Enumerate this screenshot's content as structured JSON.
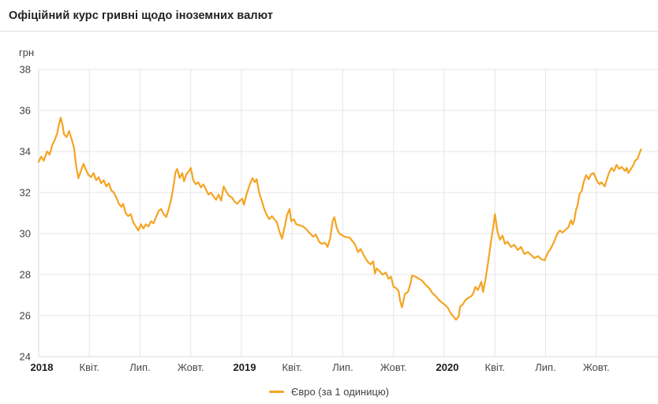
{
  "header": {
    "title": "Офіційний курс гривні щодо іноземних валют"
  },
  "legend": {
    "label": "Євро (за 1 одиницю)"
  },
  "colors": {
    "series": "#F5A423",
    "grid": "#e6e6e6",
    "axis": "#d9d9d9",
    "tick_text": "#424242",
    "month_label": "#46494d",
    "year_label": "#1d1d1d",
    "separator": "#e0e0e0"
  },
  "chart_data": {
    "type": "line",
    "title": "Офіційний курс гривні щодо іноземних валют",
    "xlabel": "",
    "ylabel": "грн",
    "ylim": [
      24,
      38
    ],
    "yticks": [
      24,
      26,
      28,
      30,
      32,
      34,
      36,
      38
    ],
    "grid": true,
    "legend_position": "bottom",
    "x_unit": "months_since_2018-01",
    "xlim_months": [
      0,
      36.65
    ],
    "x_ticks": [
      {
        "month": 0,
        "label": "2018",
        "year": true
      },
      {
        "month": 3,
        "label": "Квіт.",
        "year": false
      },
      {
        "month": 6,
        "label": "Лип.",
        "year": false
      },
      {
        "month": 9,
        "label": "Жовт.",
        "year": false
      },
      {
        "month": 12,
        "label": "2019",
        "year": true
      },
      {
        "month": 15,
        "label": "Квіт.",
        "year": false
      },
      {
        "month": 18,
        "label": "Лип.",
        "year": false
      },
      {
        "month": 21,
        "label": "Жовт.",
        "year": false
      },
      {
        "month": 24,
        "label": "2020",
        "year": true
      },
      {
        "month": 27,
        "label": "Квіт.",
        "year": false
      },
      {
        "month": 30,
        "label": "Лип.",
        "year": false
      },
      {
        "month": 33,
        "label": "Жовт.",
        "year": false
      }
    ],
    "series": [
      {
        "name": "Євро (за 1 одиницю)",
        "color": "#F5A423",
        "points": [
          [
            0.0,
            33.5
          ],
          [
            0.15,
            33.75
          ],
          [
            0.3,
            33.55
          ],
          [
            0.5,
            34.0
          ],
          [
            0.65,
            33.85
          ],
          [
            0.8,
            34.3
          ],
          [
            0.95,
            34.55
          ],
          [
            1.1,
            34.9
          ],
          [
            1.2,
            35.3
          ],
          [
            1.3,
            35.65
          ],
          [
            1.4,
            35.35
          ],
          [
            1.5,
            34.85
          ],
          [
            1.65,
            34.7
          ],
          [
            1.8,
            35.0
          ],
          [
            1.95,
            34.6
          ],
          [
            2.1,
            34.15
          ],
          [
            2.2,
            33.4
          ],
          [
            2.35,
            32.7
          ],
          [
            2.5,
            33.05
          ],
          [
            2.65,
            33.4
          ],
          [
            2.8,
            33.1
          ],
          [
            2.95,
            32.85
          ],
          [
            3.1,
            32.75
          ],
          [
            3.25,
            32.95
          ],
          [
            3.4,
            32.6
          ],
          [
            3.55,
            32.75
          ],
          [
            3.7,
            32.45
          ],
          [
            3.85,
            32.6
          ],
          [
            4.0,
            32.3
          ],
          [
            4.15,
            32.45
          ],
          [
            4.3,
            32.1
          ],
          [
            4.45,
            32.0
          ],
          [
            4.6,
            31.75
          ],
          [
            4.75,
            31.45
          ],
          [
            4.9,
            31.3
          ],
          [
            5.0,
            31.45
          ],
          [
            5.15,
            31.0
          ],
          [
            5.3,
            30.85
          ],
          [
            5.45,
            30.95
          ],
          [
            5.6,
            30.55
          ],
          [
            5.75,
            30.35
          ],
          [
            5.9,
            30.15
          ],
          [
            6.05,
            30.45
          ],
          [
            6.2,
            30.25
          ],
          [
            6.35,
            30.45
          ],
          [
            6.5,
            30.35
          ],
          [
            6.65,
            30.6
          ],
          [
            6.8,
            30.5
          ],
          [
            6.95,
            30.8
          ],
          [
            7.1,
            31.1
          ],
          [
            7.25,
            31.2
          ],
          [
            7.4,
            30.95
          ],
          [
            7.55,
            30.8
          ],
          [
            7.7,
            31.2
          ],
          [
            7.85,
            31.7
          ],
          [
            8.0,
            32.4
          ],
          [
            8.1,
            33.0
          ],
          [
            8.2,
            33.15
          ],
          [
            8.35,
            32.7
          ],
          [
            8.5,
            32.95
          ],
          [
            8.6,
            32.55
          ],
          [
            8.75,
            32.9
          ],
          [
            8.9,
            33.05
          ],
          [
            9.0,
            33.2
          ],
          [
            9.15,
            32.6
          ],
          [
            9.3,
            32.4
          ],
          [
            9.45,
            32.5
          ],
          [
            9.6,
            32.25
          ],
          [
            9.75,
            32.4
          ],
          [
            9.9,
            32.15
          ],
          [
            10.05,
            31.9
          ],
          [
            10.2,
            32.0
          ],
          [
            10.35,
            31.8
          ],
          [
            10.5,
            31.65
          ],
          [
            10.65,
            31.9
          ],
          [
            10.8,
            31.6
          ],
          [
            10.95,
            32.3
          ],
          [
            11.1,
            32.05
          ],
          [
            11.25,
            31.85
          ],
          [
            11.45,
            31.75
          ],
          [
            11.6,
            31.55
          ],
          [
            11.75,
            31.45
          ],
          [
            11.9,
            31.6
          ],
          [
            12.05,
            31.7
          ],
          [
            12.15,
            31.4
          ],
          [
            12.3,
            31.9
          ],
          [
            12.5,
            32.4
          ],
          [
            12.65,
            32.7
          ],
          [
            12.8,
            32.5
          ],
          [
            12.9,
            32.65
          ],
          [
            13.05,
            32.0
          ],
          [
            13.2,
            31.6
          ],
          [
            13.35,
            31.2
          ],
          [
            13.5,
            30.9
          ],
          [
            13.65,
            30.7
          ],
          [
            13.8,
            30.85
          ],
          [
            13.95,
            30.7
          ],
          [
            14.1,
            30.55
          ],
          [
            14.25,
            30.1
          ],
          [
            14.4,
            29.75
          ],
          [
            14.55,
            30.3
          ],
          [
            14.7,
            30.9
          ],
          [
            14.85,
            31.2
          ],
          [
            14.95,
            30.6
          ],
          [
            15.1,
            30.7
          ],
          [
            15.25,
            30.45
          ],
          [
            15.45,
            30.4
          ],
          [
            15.65,
            30.35
          ],
          [
            15.85,
            30.2
          ],
          [
            16.0,
            30.05
          ],
          [
            16.25,
            29.85
          ],
          [
            16.4,
            29.95
          ],
          [
            16.6,
            29.6
          ],
          [
            16.75,
            29.5
          ],
          [
            16.95,
            29.55
          ],
          [
            17.1,
            29.35
          ],
          [
            17.25,
            29.75
          ],
          [
            17.4,
            30.6
          ],
          [
            17.5,
            30.8
          ],
          [
            17.65,
            30.25
          ],
          [
            17.8,
            30.0
          ],
          [
            18.1,
            29.85
          ],
          [
            18.4,
            29.8
          ],
          [
            18.7,
            29.5
          ],
          [
            18.9,
            29.1
          ],
          [
            19.05,
            29.25
          ],
          [
            19.3,
            28.85
          ],
          [
            19.5,
            28.6
          ],
          [
            19.65,
            28.5
          ],
          [
            19.8,
            28.65
          ],
          [
            19.9,
            28.05
          ],
          [
            20.0,
            28.3
          ],
          [
            20.2,
            28.15
          ],
          [
            20.35,
            28.0
          ],
          [
            20.55,
            28.1
          ],
          [
            20.7,
            27.8
          ],
          [
            20.85,
            27.9
          ],
          [
            21.0,
            27.4
          ],
          [
            21.15,
            27.35
          ],
          [
            21.3,
            27.2
          ],
          [
            21.4,
            26.7
          ],
          [
            21.5,
            26.4
          ],
          [
            21.67,
            27.05
          ],
          [
            21.85,
            27.15
          ],
          [
            22.0,
            27.55
          ],
          [
            22.1,
            27.95
          ],
          [
            22.3,
            27.9
          ],
          [
            22.5,
            27.8
          ],
          [
            22.7,
            27.7
          ],
          [
            22.9,
            27.5
          ],
          [
            23.1,
            27.35
          ],
          [
            23.3,
            27.1
          ],
          [
            23.5,
            26.95
          ],
          [
            23.7,
            26.75
          ],
          [
            23.85,
            26.65
          ],
          [
            24.0,
            26.55
          ],
          [
            24.2,
            26.4
          ],
          [
            24.4,
            26.1
          ],
          [
            24.55,
            25.95
          ],
          [
            24.7,
            25.8
          ],
          [
            24.85,
            25.95
          ],
          [
            24.95,
            26.45
          ],
          [
            25.1,
            26.55
          ],
          [
            25.25,
            26.75
          ],
          [
            25.4,
            26.85
          ],
          [
            25.6,
            26.95
          ],
          [
            25.7,
            27.05
          ],
          [
            25.85,
            27.4
          ],
          [
            26.0,
            27.25
          ],
          [
            26.2,
            27.65
          ],
          [
            26.3,
            27.15
          ],
          [
            26.45,
            27.8
          ],
          [
            26.6,
            28.6
          ],
          [
            26.75,
            29.5
          ],
          [
            26.9,
            30.3
          ],
          [
            27.0,
            30.95
          ],
          [
            27.15,
            30.1
          ],
          [
            27.3,
            29.7
          ],
          [
            27.45,
            29.9
          ],
          [
            27.6,
            29.5
          ],
          [
            27.75,
            29.6
          ],
          [
            27.95,
            29.35
          ],
          [
            28.15,
            29.45
          ],
          [
            28.35,
            29.2
          ],
          [
            28.55,
            29.35
          ],
          [
            28.75,
            29.0
          ],
          [
            28.95,
            29.1
          ],
          [
            29.15,
            28.95
          ],
          [
            29.35,
            28.8
          ],
          [
            29.55,
            28.9
          ],
          [
            29.75,
            28.75
          ],
          [
            29.95,
            28.7
          ],
          [
            30.15,
            29.1
          ],
          [
            30.3,
            29.25
          ],
          [
            30.5,
            29.6
          ],
          [
            30.7,
            30.0
          ],
          [
            30.85,
            30.15
          ],
          [
            31.0,
            30.05
          ],
          [
            31.2,
            30.2
          ],
          [
            31.35,
            30.3
          ],
          [
            31.5,
            30.65
          ],
          [
            31.6,
            30.45
          ],
          [
            31.7,
            30.65
          ],
          [
            31.8,
            31.15
          ],
          [
            31.9,
            31.4
          ],
          [
            32.0,
            31.9
          ],
          [
            32.15,
            32.1
          ],
          [
            32.25,
            32.5
          ],
          [
            32.4,
            32.85
          ],
          [
            32.55,
            32.65
          ],
          [
            32.7,
            32.9
          ],
          [
            32.85,
            32.95
          ],
          [
            33.05,
            32.55
          ],
          [
            33.2,
            32.4
          ],
          [
            33.3,
            32.5
          ],
          [
            33.5,
            32.3
          ],
          [
            33.65,
            32.7
          ],
          [
            33.75,
            32.95
          ],
          [
            33.9,
            33.2
          ],
          [
            34.05,
            33.05
          ],
          [
            34.2,
            33.35
          ],
          [
            34.35,
            33.15
          ],
          [
            34.5,
            33.25
          ],
          [
            34.7,
            33.05
          ],
          [
            34.8,
            33.2
          ],
          [
            34.9,
            32.95
          ],
          [
            35.05,
            33.15
          ],
          [
            35.2,
            33.35
          ],
          [
            35.3,
            33.55
          ],
          [
            35.45,
            33.65
          ],
          [
            35.55,
            33.9
          ],
          [
            35.65,
            34.1
          ]
        ]
      }
    ]
  }
}
